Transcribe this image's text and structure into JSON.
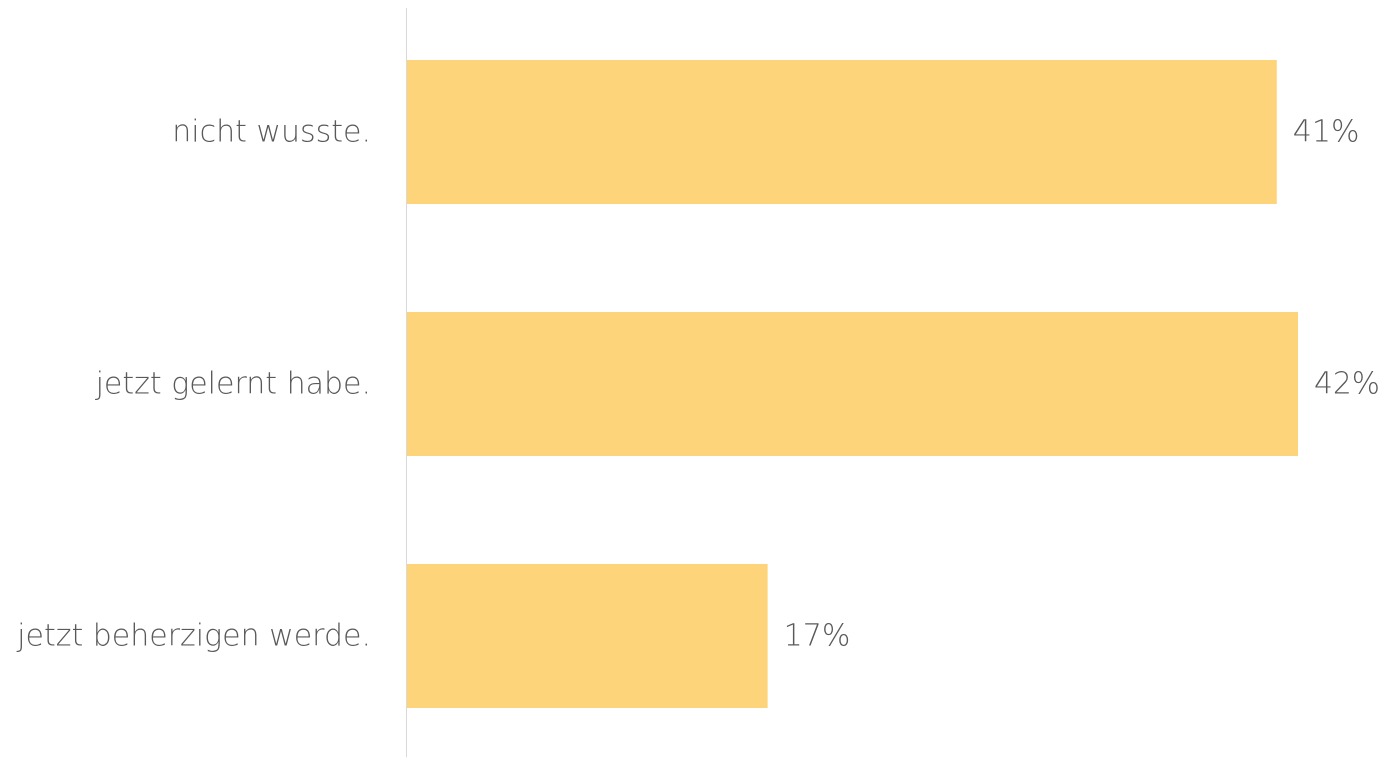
{
  "chart_data": {
    "type": "bar",
    "orientation": "horizontal",
    "categories": [
      "nicht wusste.",
      "jetzt gelernt habe.",
      "jetzt beherzigen werde."
    ],
    "values": [
      41,
      42,
      17
    ],
    "data_labels": [
      "41%",
      "42%",
      "17%"
    ],
    "unit": "%",
    "xlim": [
      0,
      42
    ],
    "grid": false,
    "legend": "none",
    "bar_color": "#FED47B",
    "axis_color": "#D9D9D9",
    "text_color": "#595959"
  }
}
